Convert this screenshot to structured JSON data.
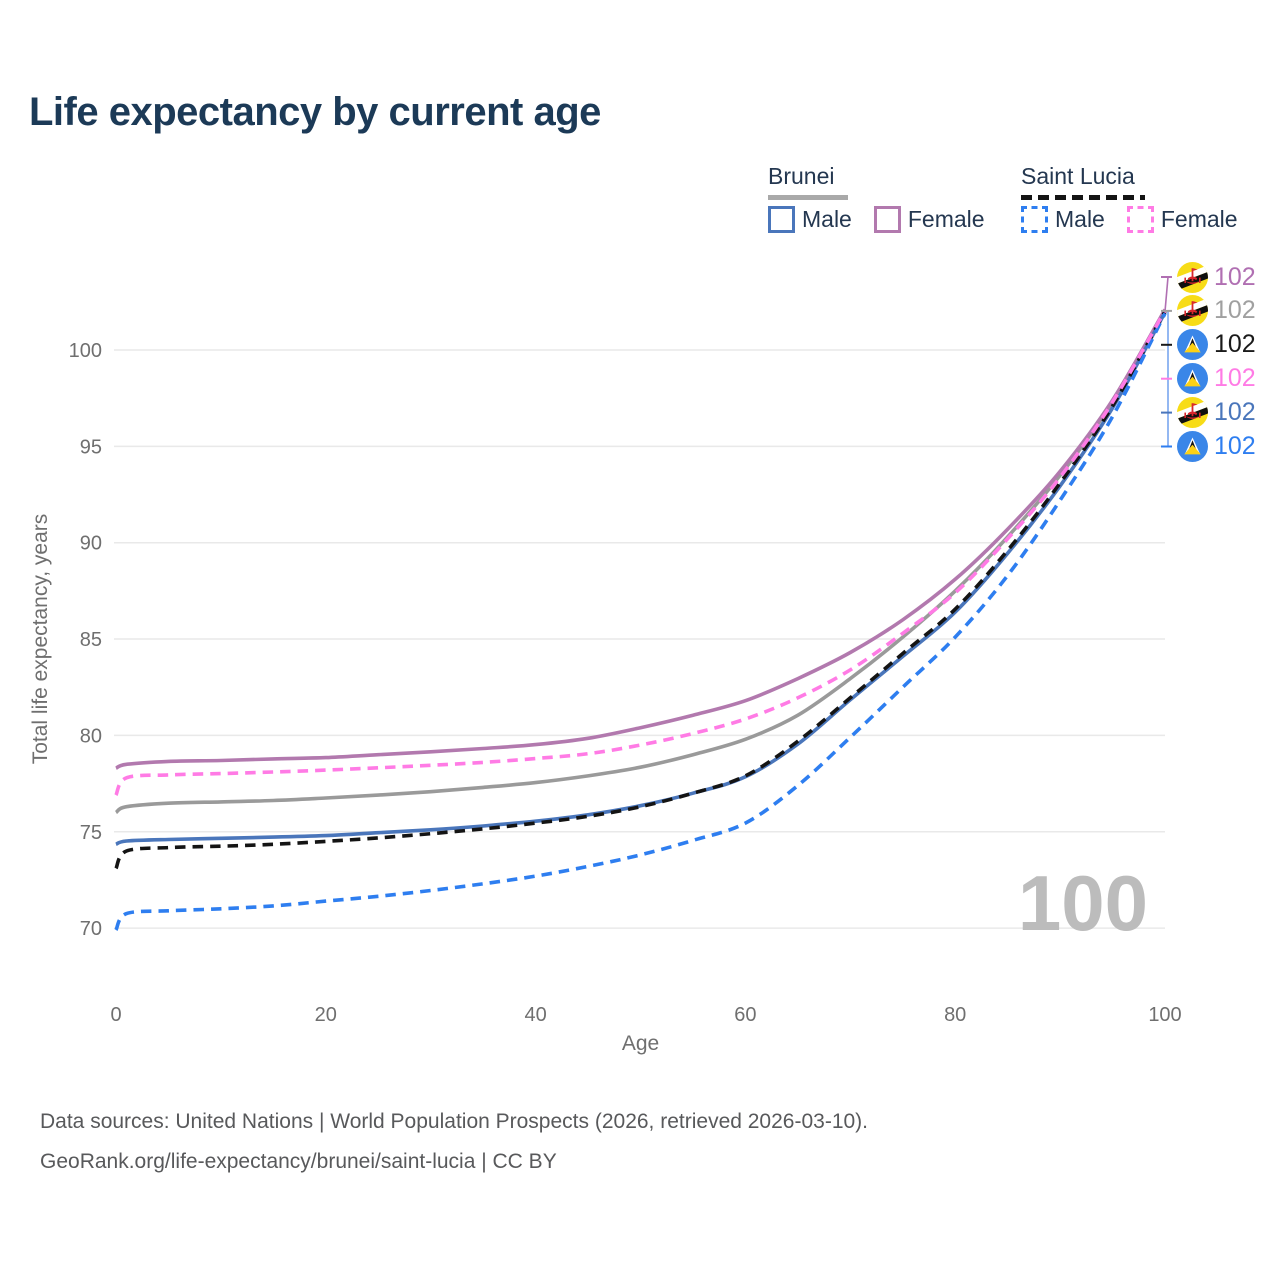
{
  "title": "Life expectancy by current age",
  "legend": {
    "groups": [
      {
        "name": "Brunei",
        "line_style": "solid",
        "underline_color": "#a9a9a9",
        "items": [
          {
            "label": "Male",
            "color": "#4a76bb"
          },
          {
            "label": "Female",
            "color": "#b279ae"
          }
        ]
      },
      {
        "name": "Saint Lucia",
        "line_style": "dashed",
        "underline_color": "#141414",
        "items": [
          {
            "label": "Male",
            "color": "#2e7ef0"
          },
          {
            "label": "Female",
            "color": "#ff7be5"
          }
        ]
      }
    ]
  },
  "end_labels": [
    {
      "series": "brunei-female",
      "flag": "brunei",
      "value": "102",
      "color": "#b06fb2"
    },
    {
      "series": "brunei-all",
      "flag": "brunei",
      "value": "102",
      "color": "#a0a0a0"
    },
    {
      "series": "saintlucia-all",
      "flag": "saintlucia",
      "value": "102",
      "color": "#1a1a1a"
    },
    {
      "series": "saintlucia-female",
      "flag": "saintlucia",
      "value": "102",
      "color": "#ff7be5"
    },
    {
      "series": "brunei-male",
      "flag": "brunei",
      "value": "102",
      "color": "#4a76bb"
    },
    {
      "series": "saintlucia-male",
      "flag": "saintlucia",
      "value": "102",
      "color": "#2e7ef0"
    }
  ],
  "watermark": {
    "value": "100"
  },
  "axes": {
    "x": {
      "label": "Age",
      "ticks": [
        0,
        20,
        40,
        60,
        80,
        100
      ]
    },
    "y": {
      "label": "Total life expectancy, years",
      "ticks": [
        70,
        75,
        80,
        85,
        90,
        95,
        100
      ]
    }
  },
  "footer": {
    "line1": "Data sources: United Nations | World Population Prospects (2026, retrieved 2026-03-10).",
    "line2": "GeoRank.org/life-expectancy/brunei/saint-lucia | CC BY"
  },
  "chart_data": {
    "type": "line",
    "title": "Life expectancy by current age",
    "xlabel": "Age",
    "ylabel": "Total life expectancy, years",
    "xlim": [
      0,
      100
    ],
    "ylim": [
      68.5,
      103
    ],
    "x_ticks": [
      0,
      20,
      40,
      60,
      80,
      100
    ],
    "y_ticks": [
      70,
      75,
      80,
      85,
      90,
      95,
      100
    ],
    "grid": "horizontal",
    "legend_position": "top-right",
    "x": [
      0,
      1,
      5,
      10,
      15,
      20,
      25,
      30,
      35,
      40,
      45,
      50,
      55,
      60,
      65,
      70,
      75,
      80,
      85,
      90,
      95,
      100
    ],
    "series": [
      {
        "id": "brunei-all",
        "name": "Brunei (both sexes)",
        "country": "Brunei",
        "sex": "Both",
        "color": "#9a9a9a",
        "dash": "solid",
        "end_label": "102",
        "values": [
          76.0,
          76.3,
          76.48,
          76.55,
          76.62,
          76.75,
          76.9,
          77.08,
          77.3,
          77.55,
          77.9,
          78.35,
          79.0,
          79.8,
          81.05,
          82.95,
          85.1,
          87.5,
          90.3,
          93.5,
          97.3,
          102.0
        ]
      },
      {
        "id": "brunei-female",
        "name": "Brunei Female",
        "country": "Brunei",
        "sex": "Female",
        "color": "#b279ae",
        "dash": "solid",
        "end_label": "102",
        "values": [
          78.3,
          78.5,
          78.65,
          78.7,
          78.78,
          78.85,
          79.0,
          79.15,
          79.32,
          79.52,
          79.85,
          80.4,
          81.05,
          81.8,
          82.95,
          84.3,
          86.0,
          88.1,
          90.7,
          93.7,
          97.4,
          102.1
        ]
      },
      {
        "id": "brunei-male",
        "name": "Brunei Male",
        "country": "Brunei",
        "sex": "Male",
        "color": "#4a76bb",
        "dash": "solid",
        "end_label": "102",
        "values": [
          74.35,
          74.52,
          74.6,
          74.66,
          74.72,
          74.8,
          74.95,
          75.1,
          75.3,
          75.55,
          75.88,
          76.35,
          77.0,
          77.85,
          79.55,
          81.85,
          84.1,
          86.4,
          89.45,
          92.95,
          97.0,
          101.95
        ]
      },
      {
        "id": "saintlucia-all",
        "name": "Saint Lucia (both sexes)",
        "country": "Saint Lucia",
        "sex": "Both",
        "color": "#141414",
        "dash": "dashed",
        "end_label": "102",
        "values": [
          73.1,
          74.0,
          74.18,
          74.25,
          74.35,
          74.5,
          74.68,
          74.9,
          75.15,
          75.45,
          75.8,
          76.3,
          77.0,
          77.9,
          79.7,
          81.95,
          84.25,
          86.55,
          89.6,
          93.1,
          97.1,
          102.0
        ]
      },
      {
        "id": "saintlucia-male",
        "name": "Saint Lucia Male",
        "country": "Saint Lucia",
        "sex": "Male",
        "color": "#2e7ef0",
        "dash": "dashed",
        "end_label": "102",
        "values": [
          69.9,
          70.75,
          70.9,
          71.0,
          71.15,
          71.4,
          71.65,
          71.95,
          72.3,
          72.7,
          73.2,
          73.8,
          74.55,
          75.45,
          77.4,
          79.9,
          82.5,
          85.1,
          88.3,
          92.2,
          96.55,
          101.9
        ]
      },
      {
        "id": "saintlucia-female",
        "name": "Saint Lucia Female",
        "country": "Saint Lucia",
        "sex": "Female",
        "color": "#ff7be5",
        "dash": "dashed",
        "end_label": "102",
        "values": [
          76.9,
          77.8,
          77.95,
          78.02,
          78.1,
          78.2,
          78.32,
          78.45,
          78.6,
          78.8,
          79.05,
          79.5,
          80.1,
          80.85,
          81.95,
          83.4,
          85.3,
          87.4,
          90.2,
          93.4,
          97.3,
          102.05
        ]
      }
    ]
  }
}
